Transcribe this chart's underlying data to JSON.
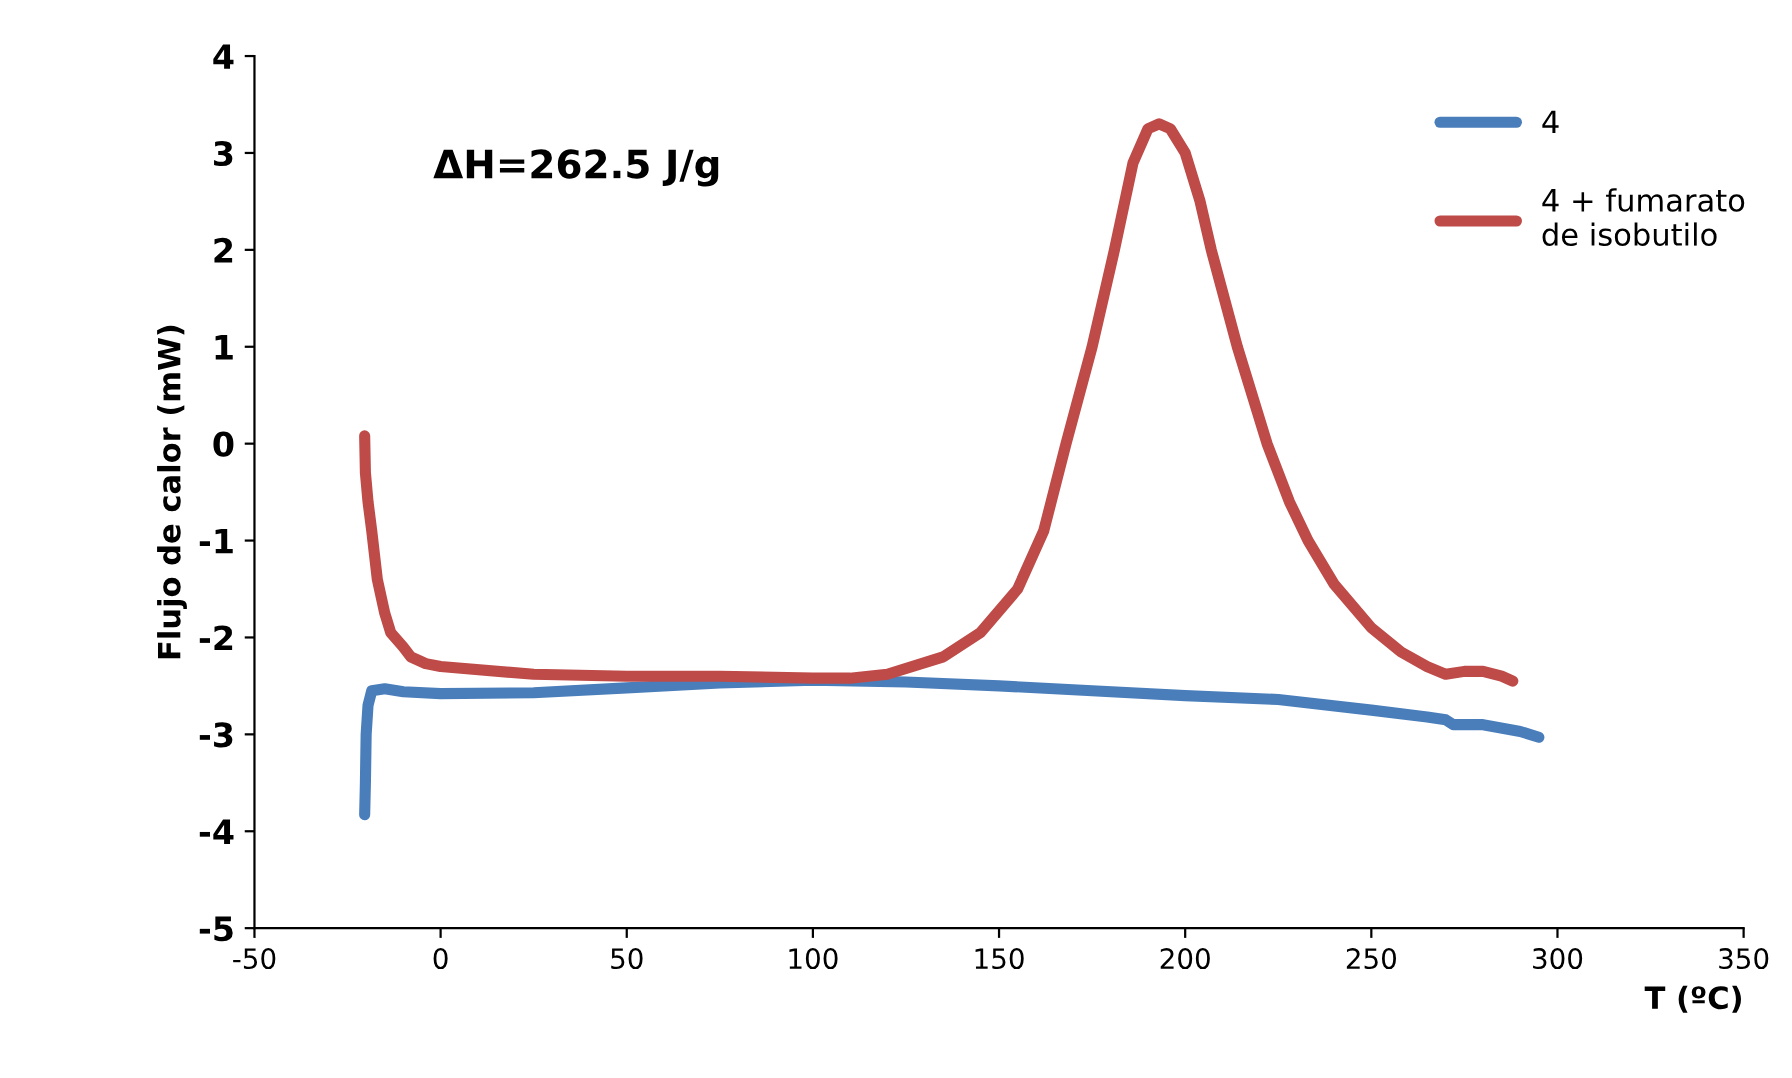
{
  "chart_data": {
    "type": "line",
    "xlabel": "T (ºC)",
    "ylabel": "Flujo de calor (mW)",
    "annotations": [
      "ΔH=262.5 J/g"
    ],
    "xlim": [
      -50,
      350
    ],
    "xticks": [
      -50,
      0,
      50,
      100,
      150,
      200,
      250,
      300,
      350
    ],
    "ylim": [
      -5,
      4
    ],
    "yticks": [
      -5,
      -4,
      -3,
      -2,
      -1,
      0,
      1,
      2,
      3,
      4
    ],
    "grid": false,
    "legend": "top right",
    "marker": "none",
    "line_style": "solid",
    "series": [
      {
        "name": "4",
        "color": "#4a7ebb",
        "x": [
          -20.4,
          -20.2,
          -20,
          -19.5,
          -18.5,
          -15,
          -10,
          0,
          25,
          50,
          75,
          100,
          125,
          150,
          175,
          200,
          225,
          250,
          265,
          270,
          272,
          280,
          290,
          295
        ],
        "values": [
          -3.83,
          -3.5,
          -3.0,
          -2.7,
          -2.55,
          -2.53,
          -2.56,
          -2.58,
          -2.57,
          -2.52,
          -2.47,
          -2.44,
          -2.46,
          -2.5,
          -2.55,
          -2.6,
          -2.64,
          -2.75,
          -2.82,
          -2.85,
          -2.9,
          -2.9,
          -2.97,
          -3.03
        ]
      },
      {
        "name": "4 + fumarato\nde isobutilo",
        "color": "#be4b48",
        "x": [
          -20.4,
          -20.2,
          -19.5,
          -18.5,
          -17,
          -15,
          -13.4,
          -10,
          -8,
          -4,
          0,
          25,
          50,
          75,
          100,
          110,
          120,
          135,
          145,
          155,
          162,
          168,
          175,
          181,
          186,
          190,
          193,
          196,
          200,
          204,
          207,
          214,
          222,
          228,
          233,
          240,
          250,
          258,
          265,
          270,
          275,
          280,
          285,
          288
        ],
        "values": [
          0.08,
          -0.3,
          -0.6,
          -0.9,
          -1.4,
          -1.75,
          -1.95,
          -2.1,
          -2.2,
          -2.27,
          -2.3,
          -2.38,
          -2.4,
          -2.4,
          -2.42,
          -2.42,
          -2.38,
          -2.2,
          -1.95,
          -1.5,
          -0.9,
          0.0,
          1.0,
          2.0,
          2.9,
          3.25,
          3.3,
          3.25,
          3.0,
          2.5,
          2.0,
          1.0,
          0.0,
          -0.6,
          -1.0,
          -1.45,
          -1.9,
          -2.15,
          -2.3,
          -2.38,
          -2.35,
          -2.35,
          -2.4,
          -2.45
        ]
      }
    ]
  }
}
